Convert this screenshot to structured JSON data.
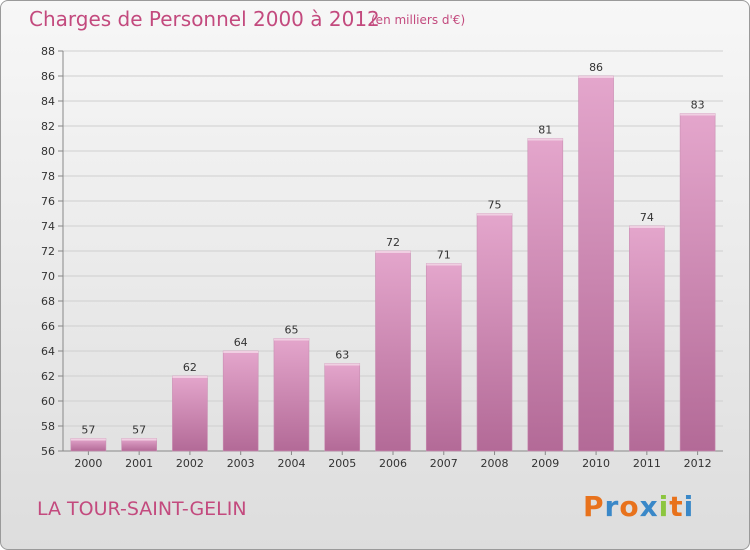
{
  "header": {
    "title": "Charges de Personnel 2000 à 2012",
    "subtitle": "(en milliers d'€)"
  },
  "footer": {
    "town": "LA TOUR-SAINT-GELIN",
    "logo_text": "Proxiti",
    "logo_colors": [
      "#e8721c",
      "#3a88c8",
      "#e8721c",
      "#3a88c8",
      "#8cc63f",
      "#e8721c",
      "#3a88c8"
    ]
  },
  "colors": {
    "title": "#c34a7e",
    "bar_top": "#e4a6cc",
    "bar_bottom": "#b36a97",
    "grid": "#cfcfcf",
    "text": "#333333"
  },
  "chart_data": {
    "type": "bar",
    "categories": [
      "2000",
      "2001",
      "2002",
      "2003",
      "2004",
      "2005",
      "2006",
      "2007",
      "2008",
      "2009",
      "2010",
      "2011",
      "2012"
    ],
    "values": [
      57,
      57,
      62,
      64,
      65,
      63,
      72,
      71,
      75,
      81,
      86,
      74,
      83
    ],
    "ylim": [
      56,
      88
    ],
    "yticks": [
      56,
      58,
      60,
      62,
      64,
      66,
      68,
      70,
      72,
      74,
      76,
      78,
      80,
      82,
      84,
      86,
      88
    ],
    "grid": true,
    "data_labels": true
  }
}
